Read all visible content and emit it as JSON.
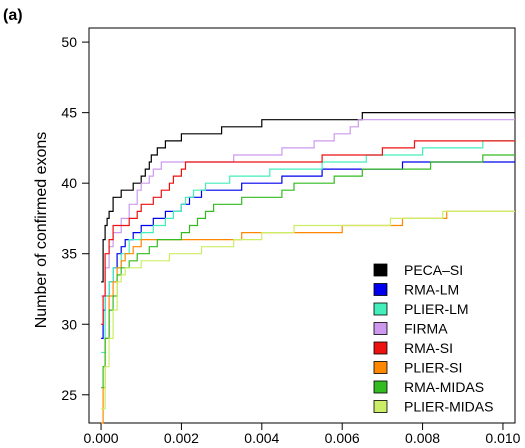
{
  "panel_label": "(a)",
  "chart_data": {
    "type": "line",
    "title": "",
    "xlabel": "",
    "ylabel": "Number of confirmed exons",
    "xlim": [
      -0.0003,
      0.0103
    ],
    "ylim": [
      23,
      51
    ],
    "x_ticks": [
      {
        "value": 0.0,
        "label": "0.000"
      },
      {
        "value": 0.002,
        "label": "0.002"
      },
      {
        "value": 0.004,
        "label": "0.004"
      },
      {
        "value": 0.006,
        "label": "0.006"
      },
      {
        "value": 0.008,
        "label": "0.008"
      },
      {
        "value": 0.01,
        "label": "0.010"
      }
    ],
    "y_ticks": [
      {
        "value": 25,
        "label": "25"
      },
      {
        "value": 30,
        "label": "30"
      },
      {
        "value": 35,
        "label": "35"
      },
      {
        "value": 40,
        "label": "40"
      },
      {
        "value": 45,
        "label": "45"
      },
      {
        "value": 50,
        "label": "50"
      }
    ],
    "grid": false,
    "legend_position": "bottom-right",
    "series": [
      {
        "name": "PECA–SI",
        "color": "#000000",
        "points": [
          [
            0,
            33
          ],
          [
            5e-05,
            36
          ],
          [
            0.0001,
            37
          ],
          [
            0.00015,
            37.5
          ],
          [
            0.0002,
            38
          ],
          [
            0.0003,
            39
          ],
          [
            0.0005,
            39.5
          ],
          [
            0.0008,
            40
          ],
          [
            0.001,
            40.5
          ],
          [
            0.0011,
            41
          ],
          [
            0.0012,
            41.5
          ],
          [
            0.00125,
            42
          ],
          [
            0.0014,
            42.5
          ],
          [
            0.0016,
            43
          ],
          [
            0.002,
            43.5
          ],
          [
            0.003,
            44
          ],
          [
            0.004,
            44.5
          ],
          [
            0.0065,
            45
          ],
          [
            0.0103,
            45
          ]
        ]
      },
      {
        "name": "RMA-LM",
        "color": "#0000ee",
        "points": [
          [
            0,
            29
          ],
          [
            5e-05,
            31
          ],
          [
            0.0001,
            32
          ],
          [
            0.0002,
            33
          ],
          [
            0.0003,
            34
          ],
          [
            0.0004,
            35
          ],
          [
            0.0005,
            35.5
          ],
          [
            0.0006,
            36
          ],
          [
            0.0008,
            36.5
          ],
          [
            0.001,
            37
          ],
          [
            0.0013,
            37.5
          ],
          [
            0.0016,
            38
          ],
          [
            0.002,
            38.5
          ],
          [
            0.0022,
            39
          ],
          [
            0.0025,
            39.5
          ],
          [
            0.0035,
            40
          ],
          [
            0.0045,
            40.5
          ],
          [
            0.0055,
            41
          ],
          [
            0.0075,
            41.5
          ],
          [
            0.0103,
            41.5
          ]
        ]
      },
      {
        "name": "PLIER-LM",
        "color": "#44eebb",
        "points": [
          [
            0,
            28
          ],
          [
            0.0001,
            32
          ],
          [
            0.0002,
            33
          ],
          [
            0.0003,
            34
          ],
          [
            0.0005,
            35
          ],
          [
            0.0007,
            36
          ],
          [
            0.001,
            36.5
          ],
          [
            0.0013,
            37
          ],
          [
            0.0016,
            37.5
          ],
          [
            0.0018,
            38
          ],
          [
            0.002,
            38.5
          ],
          [
            0.0021,
            39
          ],
          [
            0.0023,
            39.5
          ],
          [
            0.0026,
            40
          ],
          [
            0.0032,
            40.5
          ],
          [
            0.0042,
            41
          ],
          [
            0.0055,
            41.5
          ],
          [
            0.0066,
            42
          ],
          [
            0.008,
            42.5
          ],
          [
            0.0095,
            43
          ],
          [
            0.0103,
            43
          ]
        ]
      },
      {
        "name": "FIRMA",
        "color": "#cc99ee",
        "points": [
          [
            0,
            32
          ],
          [
            0.0001,
            34
          ],
          [
            0.0002,
            35.5
          ],
          [
            0.0003,
            36.5
          ],
          [
            0.0005,
            37.5
          ],
          [
            0.0007,
            38.5
          ],
          [
            0.0009,
            39.5
          ],
          [
            0.001,
            40
          ],
          [
            0.0012,
            40.5
          ],
          [
            0.0013,
            41
          ],
          [
            0.0015,
            41.5
          ],
          [
            0.0033,
            42
          ],
          [
            0.0045,
            42.5
          ],
          [
            0.0053,
            43
          ],
          [
            0.0058,
            43.5
          ],
          [
            0.0062,
            44
          ],
          [
            0.0064,
            44.5
          ],
          [
            0.0103,
            44.5
          ]
        ]
      },
      {
        "name": "RMA-SI",
        "color": "#ee1111",
        "points": [
          [
            0,
            30
          ],
          [
            5e-05,
            32
          ],
          [
            0.0001,
            35
          ],
          [
            0.0002,
            36
          ],
          [
            0.0003,
            37
          ],
          [
            0.0007,
            37.5
          ],
          [
            0.0009,
            38
          ],
          [
            0.001,
            38.5
          ],
          [
            0.0013,
            39
          ],
          [
            0.0015,
            39.5
          ],
          [
            0.0017,
            40
          ],
          [
            0.0018,
            40.5
          ],
          [
            0.002,
            41
          ],
          [
            0.0021,
            41.5
          ],
          [
            0.0055,
            42
          ],
          [
            0.007,
            42.5
          ],
          [
            0.0078,
            43
          ],
          [
            0.0103,
            43
          ]
        ]
      },
      {
        "name": "PLIER-SI",
        "color": "#ff8800",
        "points": [
          [
            0,
            23
          ],
          [
            5e-05,
            25.5
          ],
          [
            0.0001,
            29
          ],
          [
            0.0002,
            32
          ],
          [
            0.0003,
            33
          ],
          [
            0.0004,
            34
          ],
          [
            0.0005,
            34.5
          ],
          [
            0.0006,
            35
          ],
          [
            0.0008,
            35.5
          ],
          [
            0.001,
            36
          ],
          [
            0.0035,
            36.5
          ],
          [
            0.006,
            37
          ],
          [
            0.0075,
            37.5
          ],
          [
            0.0086,
            38
          ],
          [
            0.0103,
            38
          ]
        ]
      },
      {
        "name": "RMA-MIDAS",
        "color": "#33bb22",
        "points": [
          [
            0,
            25.5
          ],
          [
            5e-05,
            27
          ],
          [
            0.0001,
            29
          ],
          [
            0.0002,
            31
          ],
          [
            0.0003,
            32
          ],
          [
            0.0004,
            33.5
          ],
          [
            0.0005,
            34
          ],
          [
            0.0007,
            34.5
          ],
          [
            0.0009,
            35
          ],
          [
            0.0012,
            35.5
          ],
          [
            0.0014,
            36
          ],
          [
            0.002,
            36.5
          ],
          [
            0.0022,
            37
          ],
          [
            0.0024,
            37.5
          ],
          [
            0.0026,
            38
          ],
          [
            0.0028,
            38.5
          ],
          [
            0.0035,
            39
          ],
          [
            0.0045,
            39.5
          ],
          [
            0.0048,
            40
          ],
          [
            0.0058,
            40.5
          ],
          [
            0.0065,
            41
          ],
          [
            0.0082,
            41.5
          ],
          [
            0.0095,
            42
          ],
          [
            0.0103,
            42
          ]
        ]
      },
      {
        "name": "PLIER-MIDAS",
        "color": "#ccee66",
        "points": [
          [
            0,
            24
          ],
          [
            0.0001,
            27
          ],
          [
            0.0002,
            29
          ],
          [
            0.0003,
            31
          ],
          [
            0.0004,
            33
          ],
          [
            0.0005,
            33.5
          ],
          [
            0.0006,
            34
          ],
          [
            0.001,
            34.5
          ],
          [
            0.0017,
            35
          ],
          [
            0.0025,
            35.5
          ],
          [
            0.0033,
            36
          ],
          [
            0.004,
            36.5
          ],
          [
            0.0048,
            37
          ],
          [
            0.0072,
            37.5
          ],
          [
            0.0085,
            38
          ],
          [
            0.0103,
            38
          ]
        ]
      }
    ]
  }
}
